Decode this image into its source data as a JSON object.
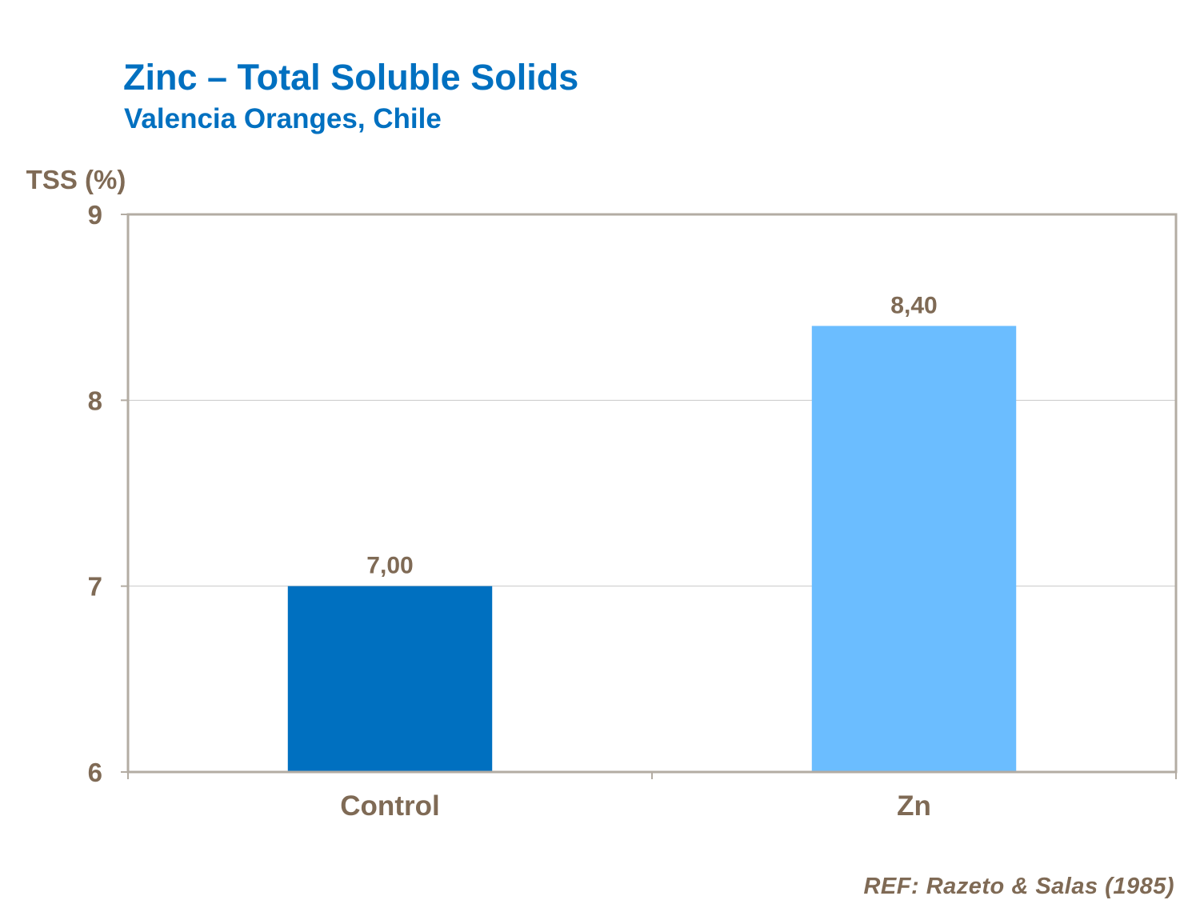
{
  "chart_data": {
    "type": "bar",
    "title": "Zinc – Total Soluble Solids",
    "subtitle": "Valencia Oranges, Chile",
    "ylabel": "TSS (%)",
    "xlabel": "",
    "categories": [
      "Control",
      "Zn"
    ],
    "values": [
      7.0,
      8.4
    ],
    "data_labels": [
      "7,00",
      "8,40"
    ],
    "bar_colors": [
      "#0070c0",
      "#6bbdff"
    ],
    "ylim": [
      6,
      9
    ],
    "yticks": [
      6,
      7,
      8,
      9
    ],
    "ytick_labels": [
      "6",
      "7",
      "8",
      "9"
    ],
    "grid": true,
    "legend": "none"
  },
  "footer": {
    "reference": "REF: Razeto & Salas (1985)"
  },
  "colors": {
    "title": "#0070c0",
    "text": "#7f6a55",
    "axis": "#b3aca3",
    "gridline": "#c8c8c8"
  }
}
